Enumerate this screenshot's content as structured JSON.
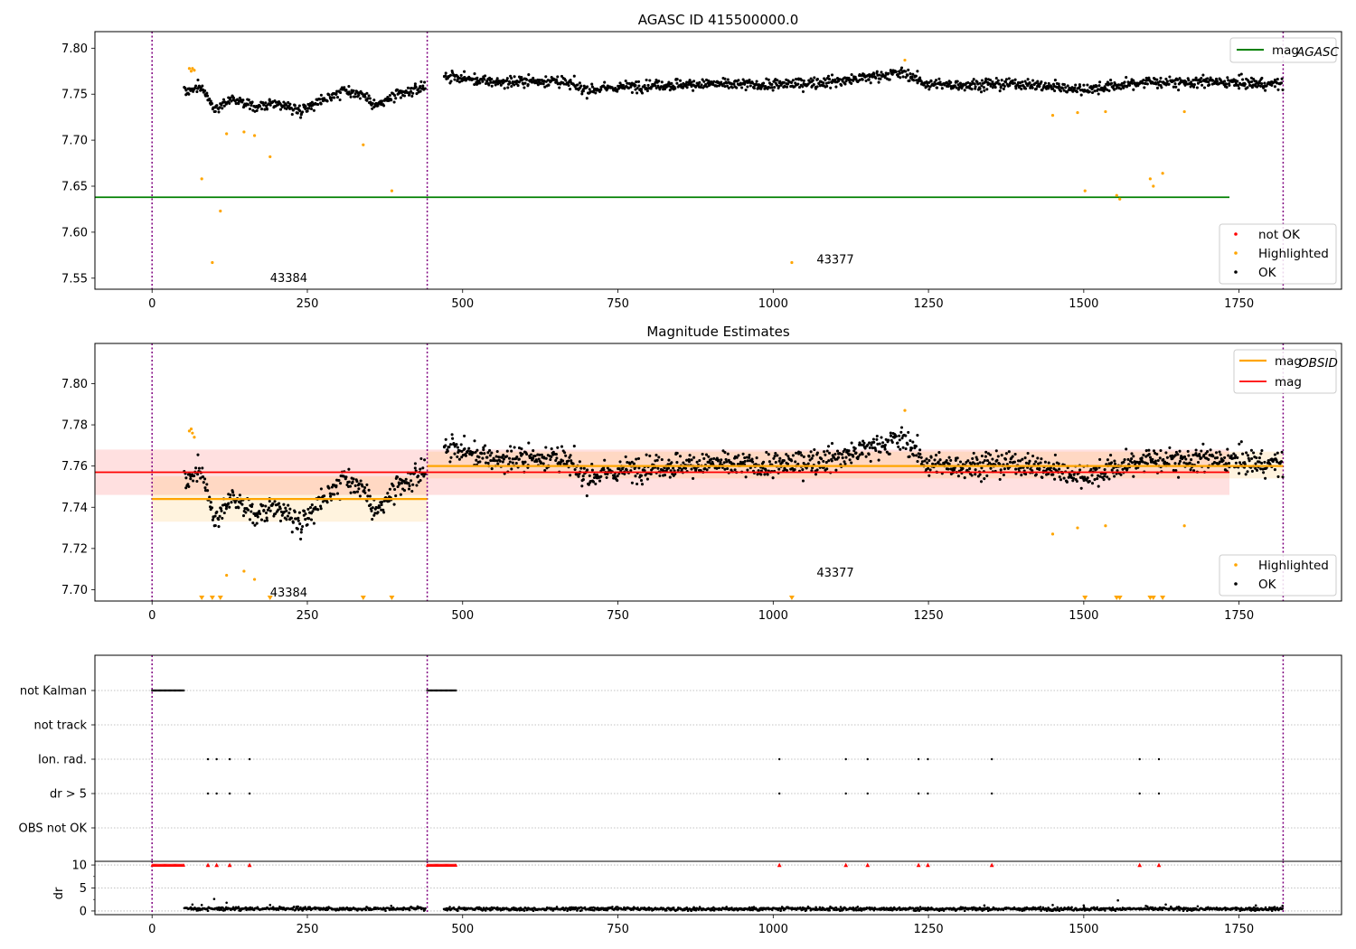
{
  "chart_data": [
    {
      "type": "scatter",
      "title": "AGASC ID 415500000.0",
      "xlim": [
        -92,
        1915
      ],
      "ylim": [
        7.538,
        7.818
      ],
      "xticks": [
        0,
        250,
        500,
        750,
        1000,
        1250,
        1500,
        1750,
        2000
      ],
      "yticks": [
        7.55,
        7.6,
        7.65,
        7.7,
        7.75,
        7.8
      ],
      "obsid_boundaries": [
        0,
        443,
        1821
      ],
      "obsid_labels": [
        {
          "text": "43384",
          "x": 220,
          "y": 7.55
        },
        {
          "text": "43377",
          "x": 1100,
          "y": 7.57
        }
      ],
      "lines": [
        {
          "name": "mag",
          "subscript": "AGASC",
          "color": "#008000",
          "x": [
            -92,
            1915
          ],
          "y": [
            7.638,
            7.638
          ]
        }
      ],
      "series": [
        {
          "name": "not OK",
          "color": "#ff0000",
          "points": []
        },
        {
          "name": "Highlighted",
          "color": "#ffa500",
          "points": [
            [
              60,
              7.778
            ],
            [
              63,
              7.775
            ],
            [
              65,
              7.778
            ],
            [
              68,
              7.776
            ],
            [
              80,
              7.658
            ],
            [
              97,
              7.567
            ],
            [
              110,
              7.623
            ],
            [
              120,
              7.707
            ],
            [
              148,
              7.709
            ],
            [
              165,
              7.705
            ],
            [
              190,
              7.682
            ],
            [
              340,
              7.695
            ],
            [
              386,
              7.645
            ],
            [
              1030,
              7.567
            ],
            [
              1212,
              7.787
            ],
            [
              1450,
              7.727
            ],
            [
              1490,
              7.73
            ],
            [
              1502,
              7.645
            ],
            [
              1535,
              7.731
            ],
            [
              1553,
              7.64
            ],
            [
              1558,
              7.636
            ],
            [
              1607,
              7.658
            ],
            [
              1612,
              7.65
            ],
            [
              1627,
              7.664
            ],
            [
              1662,
              7.731
            ]
          ]
        },
        {
          "name": "OK",
          "color": "#000000",
          "segments": [
            {
              "x": [
                52,
                440
              ],
              "shape": [
                [
                  52,
                  7.753
                ],
                [
                  80,
                  7.757
                ],
                [
                  100,
                  7.735
                ],
                [
                  130,
                  7.746
                ],
                [
                  160,
                  7.736
                ],
                [
                  200,
                  7.74
                ],
                [
                  240,
                  7.733
                ],
                [
                  280,
                  7.746
                ],
                [
                  310,
                  7.754
                ],
                [
                  340,
                  7.75
                ],
                [
                  360,
                  7.737
                ],
                [
                  390,
                  7.748
                ],
                [
                  440,
                  7.758
                ]
              ],
              "noise": 0.005
            },
            {
              "x": [
                470,
                1820
              ],
              "shape": [
                [
                  470,
                  7.77
                ],
                [
                  550,
                  7.763
                ],
                [
                  650,
                  7.765
                ],
                [
                  700,
                  7.755
                ],
                [
                  800,
                  7.76
                ],
                [
                  900,
                  7.761
                ],
                [
                  1000,
                  7.76
                ],
                [
                  1100,
                  7.764
                ],
                [
                  1150,
                  7.768
                ],
                [
                  1210,
                  7.774
                ],
                [
                  1250,
                  7.76
                ],
                [
                  1400,
                  7.761
                ],
                [
                  1500,
                  7.755
                ],
                [
                  1600,
                  7.763
                ],
                [
                  1700,
                  7.763
                ],
                [
                  1820,
                  7.761
                ]
              ],
              "noise": 0.0055
            }
          ]
        }
      ],
      "legends": [
        {
          "entries": [
            {
              "label": "mag",
              "subscript": "AGASC",
              "marker": "line",
              "color": "#008000"
            }
          ],
          "placement": "upper-right"
        },
        {
          "entries": [
            {
              "label": "not OK",
              "marker": "dot",
              "color": "#ff0000"
            },
            {
              "label": "Highlighted",
              "marker": "dot",
              "color": "#ffa500"
            },
            {
              "label": "OK",
              "marker": "dot",
              "color": "#000000"
            }
          ],
          "placement": "lower-right"
        }
      ]
    },
    {
      "type": "scatter",
      "title": "Magnitude Estimates",
      "xlim": [
        -92,
        1915
      ],
      "ylim": [
        7.6945,
        7.8195
      ],
      "xticks": [
        0,
        250,
        500,
        750,
        1000,
        1250,
        1500,
        1750,
        2000
      ],
      "yticks": [
        7.7,
        7.72,
        7.74,
        7.76,
        7.78,
        7.8
      ],
      "obsid_boundaries": [
        0,
        443,
        1821
      ],
      "obsid_labels": [
        {
          "text": "43384",
          "x": 220,
          "y": 7.6985
        },
        {
          "text": "43377",
          "x": 1100,
          "y": 7.708
        }
      ],
      "lines": [
        {
          "name": "mag",
          "subscript": "OBSID",
          "color": "#ffa500",
          "segments": [
            {
              "x": [
                0,
                443
              ],
              "y": 7.744,
              "band": [
                7.733,
                7.755
              ]
            },
            {
              "x": [
                443,
                1821
              ],
              "y": 7.76,
              "band": [
                7.754,
                7.767
              ]
            }
          ]
        },
        {
          "name": "mag",
          "color": "#ff0000",
          "x": [
            -92,
            1915
          ],
          "y": 7.757,
          "band": [
            7.746,
            7.768
          ]
        }
      ],
      "series": [
        {
          "name": "Highlighted",
          "color": "#ffa500",
          "points": [
            [
              60,
              7.777
            ],
            [
              63,
              7.778
            ],
            [
              65,
              7.776
            ],
            [
              68,
              7.774
            ],
            [
              120,
              7.707
            ],
            [
              148,
              7.709
            ],
            [
              165,
              7.705
            ],
            [
              1212,
              7.787
            ],
            [
              1450,
              7.727
            ],
            [
              1490,
              7.73
            ],
            [
              1535,
              7.731
            ],
            [
              1662,
              7.731
            ]
          ]
        },
        {
          "name": "Highlighted (below axis)",
          "color": "#ffa500",
          "marker": "triangle-down",
          "x": [
            80,
            97,
            110,
            190,
            340,
            386,
            1030,
            1502,
            1553,
            1558,
            1607,
            1612,
            1627
          ]
        },
        {
          "name": "OK",
          "color": "#000000",
          "segments": [
            {
              "x": [
                52,
                440
              ],
              "shape": [
                [
                  52,
                  7.753
                ],
                [
                  80,
                  7.757
                ],
                [
                  100,
                  7.735
                ],
                [
                  130,
                  7.746
                ],
                [
                  160,
                  7.736
                ],
                [
                  200,
                  7.74
                ],
                [
                  240,
                  7.733
                ],
                [
                  280,
                  7.746
                ],
                [
                  310,
                  7.754
                ],
                [
                  340,
                  7.75
                ],
                [
                  360,
                  7.737
                ],
                [
                  390,
                  7.748
                ],
                [
                  440,
                  7.758
                ]
              ],
              "noise": 0.005
            },
            {
              "x": [
                470,
                1820
              ],
              "shape": [
                [
                  470,
                  7.77
                ],
                [
                  550,
                  7.763
                ],
                [
                  650,
                  7.765
                ],
                [
                  700,
                  7.755
                ],
                [
                  800,
                  7.76
                ],
                [
                  900,
                  7.761
                ],
                [
                  1000,
                  7.76
                ],
                [
                  1100,
                  7.764
                ],
                [
                  1150,
                  7.768
                ],
                [
                  1210,
                  7.774
                ],
                [
                  1250,
                  7.76
                ],
                [
                  1400,
                  7.761
                ],
                [
                  1500,
                  7.755
                ],
                [
                  1600,
                  7.763
                ],
                [
                  1700,
                  7.763
                ],
                [
                  1820,
                  7.761
                ]
              ],
              "noise": 0.0055
            }
          ]
        }
      ],
      "legends": [
        {
          "entries": [
            {
              "label": "mag",
              "subscript": "OBSID",
              "marker": "line",
              "color": "#ffa500"
            },
            {
              "label": "mag",
              "marker": "line",
              "color": "#ff0000"
            }
          ],
          "placement": "upper-right"
        },
        {
          "entries": [
            {
              "label": "Highlighted",
              "marker": "dot",
              "color": "#ffa500"
            },
            {
              "label": "OK",
              "marker": "dot",
              "color": "#000000"
            }
          ],
          "placement": "lower-right"
        }
      ]
    },
    {
      "type": "scatter",
      "subtype": "flags",
      "xlim": [
        -92,
        1915
      ],
      "xticks": [
        0,
        250,
        500,
        750,
        1000,
        1250,
        1500,
        1750,
        2000
      ],
      "obsid_boundaries": [
        0,
        443,
        1821
      ],
      "categories": [
        "not Kalman",
        "not track",
        "Ion. rad.",
        "dr > 5",
        "OBS not OK"
      ],
      "flags": {
        "not Kalman": {
          "ranges": [
            [
              0,
              52
            ],
            [
              443,
              490
            ]
          ]
        },
        "not track": {
          "x": []
        },
        "Ion. rad.": {
          "x": [
            90,
            104,
            125,
            157,
            1010,
            1117,
            1152,
            1234,
            1249,
            1352,
            1590,
            1621
          ]
        },
        "dr > 5": {
          "x": [
            90,
            104,
            125,
            157,
            1010,
            1117,
            1152,
            1234,
            1249,
            1352,
            1590,
            1621
          ]
        },
        "OBS not OK": {
          "x": []
        }
      }
    },
    {
      "type": "scatter",
      "ylabel": "dr",
      "xlim": [
        -92,
        1915
      ],
      "ylim": [
        -0.8,
        10.8
      ],
      "xticks": [
        0,
        250,
        500,
        750,
        1000,
        1250,
        1500,
        1750,
        2000
      ],
      "yticks": [
        0,
        5,
        10
      ],
      "obsid_boundaries": [
        0,
        443,
        1821
      ],
      "clipped_marker": {
        "color": "#ff0000",
        "marker": "triangle-up",
        "value": 10,
        "ranges": [
          [
            0,
            52
          ],
          [
            443,
            490
          ]
        ],
        "x": [
          90,
          104,
          125,
          157,
          1010,
          1117,
          1152,
          1234,
          1249,
          1352,
          1590,
          1621
        ]
      },
      "series": [
        {
          "name": "dr",
          "color": "#000000",
          "segments": [
            {
              "x": [
                52,
                440
              ],
              "mean": 0.5
            },
            {
              "x": [
                470,
                1820
              ],
              "mean": 0.45
            }
          ],
          "peaks": [
            [
              65,
              1.4
            ],
            [
              80,
              1.3
            ],
            [
              100,
              2.6
            ],
            [
              120,
              1.8
            ],
            [
              190,
              1.3
            ],
            [
              385,
              1.1
            ],
            [
              1340,
              1.2
            ],
            [
              1450,
              1.3
            ],
            [
              1500,
              1.2
            ],
            [
              1555,
              2.3
            ],
            [
              1600,
              1.1
            ],
            [
              1632,
              1.4
            ],
            [
              1777,
              1.2
            ],
            [
              1820,
              1.1
            ]
          ]
        }
      ]
    }
  ]
}
